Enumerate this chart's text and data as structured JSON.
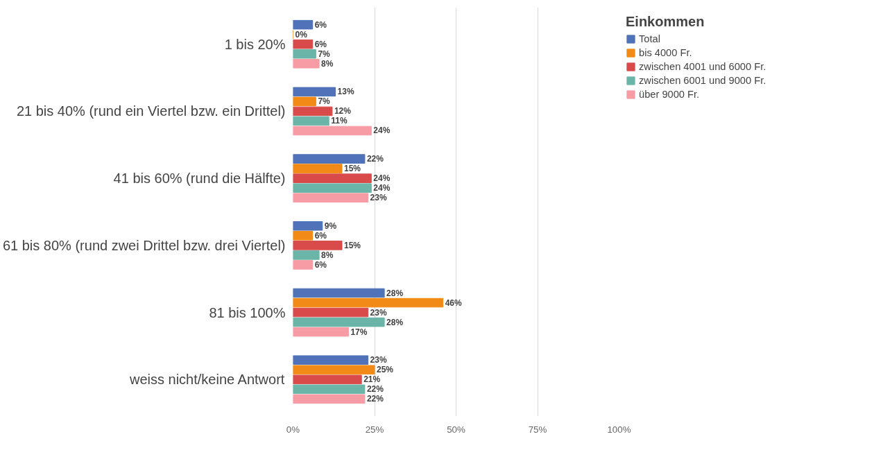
{
  "chart_data": {
    "type": "bar",
    "orientation": "horizontal",
    "legend_title": "Einkommen",
    "legend": "right",
    "grid": "x",
    "categories": [
      "1 bis 20%",
      "21 bis 40% (rund ein Viertel bzw. ein Drittel)",
      "41 bis 60% (rund die Hälfte)",
      "61 bis 80% (rund zwei Drittel bzw. drei Viertel)",
      "81 bis 100%",
      "weiss nicht/keine Antwort"
    ],
    "xlim": [
      0,
      100
    ],
    "xticks": [
      {
        "value": 0,
        "label": "0%"
      },
      {
        "value": 25,
        "label": "25%"
      },
      {
        "value": 50,
        "label": "50%"
      },
      {
        "value": 75,
        "label": "75%"
      },
      {
        "value": 100,
        "label": "100%"
      }
    ],
    "series": [
      {
        "name": "Total",
        "color": "#4f72b8",
        "values": [
          6,
          13,
          22,
          9,
          28,
          23
        ],
        "value_labels": [
          "6%",
          "13%",
          "22%",
          "9%",
          "28%",
          "23%"
        ]
      },
      {
        "name": "bis 4000 Fr.",
        "color": "#f28a17",
        "values": [
          0,
          7,
          15,
          6,
          46,
          25
        ],
        "value_labels": [
          "0%",
          "7%",
          "15%",
          "6%",
          "46%",
          "25%"
        ]
      },
      {
        "name": "zwischen 4001 und 6000 Fr.",
        "color": "#d94b4b",
        "values": [
          6,
          12,
          24,
          15,
          23,
          21
        ],
        "value_labels": [
          "6%",
          "12%",
          "24%",
          "15%",
          "23%",
          "21%"
        ]
      },
      {
        "name": "zwischen 6001 und 9000 Fr.",
        "color": "#6bb5a8",
        "values": [
          7,
          11,
          24,
          8,
          28,
          22
        ],
        "value_labels": [
          "7%",
          "11%",
          "24%",
          "8%",
          "28%",
          "22%"
        ]
      },
      {
        "name": "über 9000 Fr.",
        "color": "#f79ca4",
        "values": [
          8,
          24,
          23,
          6,
          17,
          22
        ],
        "value_labels": [
          "8%",
          "24%",
          "23%",
          "6%",
          "17%",
          "22%"
        ]
      }
    ]
  }
}
